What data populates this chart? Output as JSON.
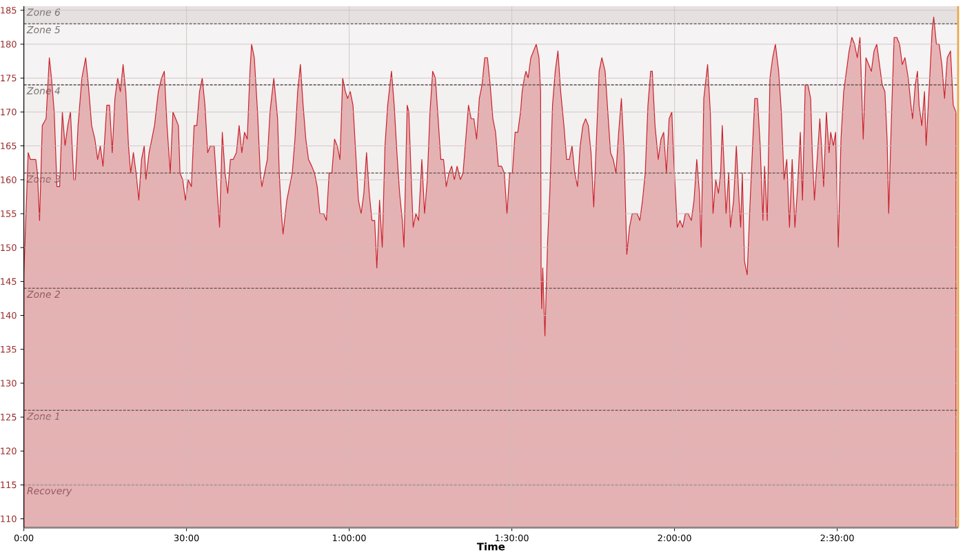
{
  "chart_data": {
    "type": "area",
    "xlabel": "Time",
    "x": [
      0.0,
      0.8,
      1.2,
      1.7,
      2.2,
      2.5,
      2.9,
      3.4,
      4.1,
      4.7,
      5.1,
      5.6,
      6.1,
      6.6,
      7.1,
      7.6,
      8.1,
      8.6,
      9.2,
      9.5,
      10.0,
      10.7,
      11.4,
      11.9,
      12.5,
      13.1,
      13.6,
      14.1,
      14.6,
      15.3,
      15.8,
      16.3,
      16.8,
      17.3,
      17.8,
      18.3,
      18.8,
      19.3,
      19.7,
      20.2,
      20.7,
      21.2,
      21.7,
      22.2,
      22.5,
      23.1,
      23.6,
      24.1,
      24.8,
      25.4,
      25.9,
      26.4,
      27.0,
      27.5,
      28.0,
      28.5,
      28.8,
      29.3,
      29.8,
      30.3,
      30.9,
      31.4,
      31.9,
      32.4,
      32.9,
      33.4,
      33.9,
      34.4,
      35.1,
      35.6,
      36.1,
      36.6,
      37.1,
      37.6,
      38.1,
      38.6,
      39.2,
      39.7,
      40.2,
      40.7,
      41.2,
      41.7,
      42.0,
      42.5,
      43.1,
      43.6,
      43.9,
      44.4,
      44.9,
      45.4,
      46.1,
      46.8,
      47.1,
      47.5,
      47.8,
      48.5,
      49.0,
      49.5,
      50.0,
      50.5,
      51.0,
      51.5,
      52.0,
      52.5,
      53.1,
      53.6,
      54.1,
      54.6,
      55.3,
      55.8,
      56.3,
      56.8,
      57.3,
      57.8,
      58.3,
      58.8,
      59.3,
      59.7,
      60.2,
      60.7,
      61.2,
      61.7,
      62.2,
      62.7,
      63.2,
      63.7,
      64.2,
      64.7,
      65.1,
      65.6,
      66.1,
      66.6,
      67.1,
      67.8,
      68.3,
      68.8,
      69.3,
      69.8,
      70.1,
      70.7,
      71.0,
      71.5,
      71.8,
      72.3,
      72.8,
      73.4,
      73.9,
      74.4,
      74.9,
      75.4,
      75.9,
      76.4,
      76.9,
      77.4,
      77.9,
      78.4,
      78.9,
      79.4,
      79.9,
      80.5,
      81.0,
      81.5,
      82.0,
      82.5,
      83.0,
      83.5,
      84.0,
      84.5,
      85.0,
      85.5,
      86.0,
      86.5,
      87.0,
      87.5,
      88.1,
      88.6,
      89.1,
      89.6,
      90.1,
      90.6,
      91.1,
      91.6,
      91.9,
      92.3,
      92.6,
      93.0,
      93.5,
      94.0,
      94.5,
      95.0,
      95.3,
      95.4,
      95.5,
      95.7,
      96.1,
      96.6,
      97.0,
      97.5,
      98.0,
      98.5,
      99.0,
      99.6,
      100.1,
      100.6,
      101.1,
      101.6,
      102.1,
      102.6,
      103.1,
      103.6,
      104.1,
      104.6,
      105.1,
      105.6,
      106.1,
      106.6,
      107.2,
      107.7,
      108.2,
      108.7,
      109.2,
      109.7,
      110.2,
      110.7,
      111.2,
      111.7,
      112.2,
      113.1,
      113.6,
      114.1,
      114.6,
      115.1,
      115.6,
      115.9,
      116.4,
      117.0,
      117.5,
      118.0,
      118.5,
      119.0,
      119.5,
      119.8,
      120.5,
      121.0,
      121.5,
      122.0,
      122.5,
      123.1,
      123.6,
      124.1,
      124.6,
      124.9,
      125.4,
      126.1,
      126.6,
      127.1,
      127.6,
      128.1,
      128.5,
      128.8,
      129.2,
      129.5,
      130.0,
      130.3,
      130.9,
      131.4,
      131.9,
      132.2,
      132.5,
      132.9,
      133.4,
      133.9,
      134.4,
      134.8,
      135.3,
      135.8,
      136.3,
      136.6,
      137.1,
      137.6,
      138.1,
      138.6,
      139.2,
      139.7,
      140.2,
      140.7,
      141.2,
      141.7,
      142.2,
      142.7,
      143.2,
      143.6,
      144.1,
      144.6,
      145.1,
      145.4,
      145.8,
      146.3,
      146.8,
      147.1,
      147.5,
      148.0,
      148.5,
      148.8,
      149.3,
      149.7,
      150.2,
      150.7,
      151.2,
      151.7,
      152.2,
      152.7,
      153.2,
      153.7,
      154.2,
      154.8,
      155.3,
      155.8,
      156.3,
      156.8,
      157.3,
      157.8,
      158.3,
      158.8,
      159.2,
      159.5,
      160.0,
      160.5,
      161.0,
      161.5,
      162.0,
      162.5,
      163.1,
      163.6,
      163.9,
      164.4,
      164.8,
      165.1,
      165.6,
      166.1,
      166.4,
      167.0,
      167.5,
      167.8,
      168.3,
      168.8,
      169.3,
      169.8,
      170.3,
      170.9,
      171.4,
      171.9
    ],
    "series": [
      {
        "color": "#c8232c",
        "values": [
          146,
          164,
          163,
          163,
          163,
          161,
          154,
          168,
          169,
          178,
          175,
          170,
          159,
          159,
          170,
          165,
          168,
          170,
          160,
          160,
          168,
          175,
          178,
          174,
          168,
          166,
          163,
          165,
          162,
          171,
          171,
          164,
          172,
          175,
          173,
          177,
          173,
          165,
          161,
          164,
          161,
          157,
          163,
          165,
          160,
          164,
          166,
          168,
          173,
          175,
          176,
          168,
          161,
          170,
          169,
          168,
          161,
          160,
          157,
          160,
          159,
          168,
          168,
          173,
          175,
          171,
          164,
          165,
          165,
          159,
          153,
          167,
          161,
          158,
          163,
          163,
          164,
          168,
          164,
          167,
          166,
          176,
          180,
          178,
          170,
          161,
          159,
          161,
          163,
          170,
          175,
          169,
          161,
          155,
          152,
          157,
          159,
          161,
          166,
          173,
          177,
          171,
          166,
          163,
          162,
          161,
          159,
          155,
          155,
          154,
          161,
          161,
          166,
          165,
          163,
          175,
          173,
          172,
          173,
          171,
          164,
          157,
          155,
          158,
          164,
          158,
          154,
          154,
          147,
          157,
          150,
          165,
          171,
          176,
          171,
          164,
          158,
          154,
          150,
          171,
          170,
          159,
          153,
          155,
          154,
          163,
          155,
          160,
          170,
          176,
          175,
          169,
          163,
          163,
          159,
          161,
          162,
          160,
          162,
          160,
          161,
          166,
          171,
          169,
          169,
          166,
          172,
          174,
          178,
          178,
          174,
          169,
          167,
          162,
          162,
          161,
          155,
          161,
          161,
          167,
          167,
          170,
          173,
          175,
          176,
          175,
          178,
          179,
          180,
          178,
          173,
          146,
          141,
          147,
          137,
          151,
          158,
          171,
          176,
          179,
          173,
          168,
          163,
          163,
          165,
          161,
          159,
          165,
          168,
          169,
          168,
          164,
          156,
          166,
          176,
          178,
          176,
          170,
          164,
          163,
          161,
          167,
          172,
          164,
          149,
          153,
          155,
          155,
          154,
          157,
          161,
          171,
          176,
          176,
          168,
          163,
          166,
          167,
          161,
          169,
          170,
          164,
          153,
          154,
          153,
          155,
          155,
          154,
          157,
          163,
          158,
          150,
          172,
          177,
          170,
          155,
          160,
          158,
          161,
          168,
          161,
          155,
          161,
          153,
          157,
          165,
          157,
          153,
          161,
          148,
          146,
          156,
          165,
          172,
          172,
          165,
          154,
          162,
          154,
          175,
          178,
          180,
          176,
          170,
          160,
          163,
          153,
          163,
          153,
          159,
          167,
          157,
          174,
          174,
          172,
          164,
          157,
          163,
          169,
          165,
          159,
          170,
          164,
          167,
          165,
          167,
          150,
          166,
          173,
          176,
          179,
          181,
          180,
          178,
          181,
          166,
          178,
          177,
          176,
          179,
          180,
          177,
          174,
          173,
          166,
          155,
          169,
          181,
          181,
          180,
          177,
          178,
          175,
          171,
          169,
          174,
          176,
          171,
          168,
          173,
          165,
          174,
          182,
          184,
          180,
          180,
          177,
          172,
          178,
          179,
          171,
          170
        ]
      }
    ],
    "xlim": [
      0,
      172.3
    ],
    "ylim": [
      108.7,
      185.6
    ],
    "xticks": [
      {
        "value": 0,
        "label": "0:00"
      },
      {
        "value": 30,
        "label": "30:00"
      },
      {
        "value": 60,
        "label": "1:00:00"
      },
      {
        "value": 90,
        "label": "1:30:00"
      },
      {
        "value": 120,
        "label": "2:00:00"
      },
      {
        "value": 150,
        "label": "2:30:00"
      }
    ],
    "yticks": [
      110,
      115,
      120,
      125,
      130,
      135,
      140,
      145,
      150,
      155,
      160,
      165,
      170,
      175,
      180,
      185
    ],
    "grid": true,
    "bands": [
      {
        "axis": "y",
        "from": 183,
        "to": 185.6,
        "label": "Zone 6",
        "color": "#e6e1e1"
      },
      {
        "axis": "y",
        "from": 174,
        "to": 183,
        "label": "Zone 5",
        "color": "#f5f3f3"
      },
      {
        "axis": "y",
        "from": 161,
        "to": 174,
        "label": "Zone 4",
        "color": "#f3f0f0"
      },
      {
        "axis": "y",
        "from": 144,
        "to": 161,
        "label": "Zone 3",
        "color": "#f3f0f0"
      },
      {
        "axis": "y",
        "from": 126,
        "to": 144,
        "label": "Zone 2",
        "color": "#f3f0f0"
      },
      {
        "axis": "y",
        "from": 115,
        "to": 126,
        "label": "Zone 1",
        "color": "#f3f0f0"
      },
      {
        "axis": "y",
        "from": 108.7,
        "to": 115,
        "label": "Recovery",
        "color": "#f3f0f0"
      }
    ],
    "ref_lines": [
      {
        "axis": "x",
        "value": 172.3,
        "color": "#e9a84a"
      }
    ]
  }
}
